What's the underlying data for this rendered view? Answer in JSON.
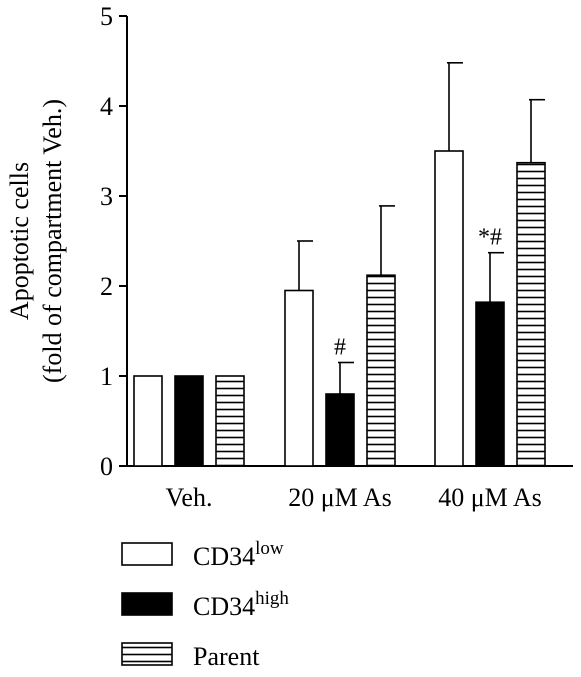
{
  "chart_data": {
    "type": "bar",
    "title": "",
    "xlabel": "",
    "ylabel": [
      "Apoptotic cells",
      "(fold of compartment Veh.)"
    ],
    "ylim": [
      0,
      5
    ],
    "yticks": [
      0,
      1,
      2,
      3,
      4,
      5
    ],
    "categories": [
      "Veh.",
      "20 μM As",
      "40 μM As"
    ],
    "series": [
      {
        "name": "CD34low",
        "legend_base": "CD34",
        "legend_sup": "low",
        "fill": "white",
        "values": [
          1.0,
          1.95,
          3.5
        ],
        "errors": [
          0,
          0.55,
          0.98
        ]
      },
      {
        "name": "CD34high",
        "legend_base": "CD34",
        "legend_sup": "high",
        "fill": "black",
        "values": [
          1.0,
          0.8,
          1.82
        ],
        "errors": [
          0,
          0.35,
          0.55
        ]
      },
      {
        "name": "Parent",
        "legend_base": "Parent",
        "legend_sup": "",
        "fill": "hatched",
        "values": [
          1.0,
          2.12,
          3.37
        ],
        "errors": [
          0,
          0.77,
          0.7
        ]
      }
    ],
    "annotations": [
      {
        "series": 1,
        "category": 1,
        "text": "#"
      },
      {
        "series": 1,
        "category": 2,
        "text": "*#"
      }
    ],
    "grid": false,
    "legend_position": "bottom-left"
  }
}
